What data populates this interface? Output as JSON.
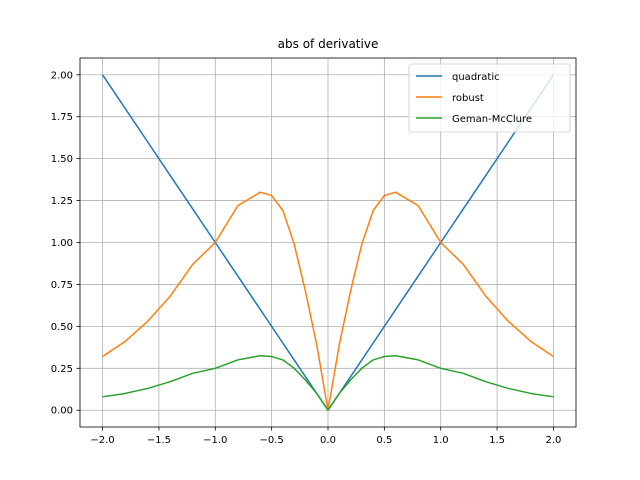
{
  "chart_data": {
    "type": "line",
    "title": "abs of derivative",
    "xlabel": "",
    "ylabel": "",
    "xlim": [
      -2.2,
      2.2
    ],
    "ylim": [
      -0.1,
      2.1
    ],
    "xticks": [
      -2.0,
      -1.5,
      -1.0,
      -0.5,
      0.0,
      0.5,
      1.0,
      1.5,
      2.0
    ],
    "xtick_labels": [
      "−2.0",
      "−1.5",
      "−1.0",
      "−0.5",
      "0.0",
      "0.5",
      "1.0",
      "1.5",
      "2.0"
    ],
    "yticks": [
      0.0,
      0.25,
      0.5,
      0.75,
      1.0,
      1.25,
      1.5,
      1.75,
      2.0
    ],
    "ytick_labels": [
      "0.00",
      "0.25",
      "0.50",
      "0.75",
      "1.00",
      "1.25",
      "1.50",
      "1.75",
      "2.00"
    ],
    "grid": true,
    "legend_position": "top-right",
    "x": [
      -2.0,
      -1.8,
      -1.6,
      -1.4,
      -1.2,
      -1.0,
      -0.8,
      -0.6,
      -0.5,
      -0.4,
      -0.3,
      -0.2,
      -0.1,
      0.0,
      0.1,
      0.2,
      0.3,
      0.4,
      0.5,
      0.6,
      0.8,
      1.0,
      1.2,
      1.4,
      1.6,
      1.8,
      2.0
    ],
    "series": [
      {
        "name": "quadratic",
        "color": "#1f77b4",
        "values": [
          2.0,
          1.8,
          1.6,
          1.4,
          1.2,
          1.0,
          0.8,
          0.6,
          0.5,
          0.4,
          0.3,
          0.2,
          0.1,
          0.0,
          0.1,
          0.2,
          0.3,
          0.4,
          0.5,
          0.6,
          0.8,
          1.0,
          1.2,
          1.4,
          1.6,
          1.8,
          2.0
        ]
      },
      {
        "name": "robust",
        "color": "#ff7f0e",
        "values": [
          0.32,
          0.41,
          0.53,
          0.68,
          0.87,
          1.0,
          1.22,
          1.3,
          1.28,
          1.19,
          0.99,
          0.71,
          0.39,
          0.0,
          0.39,
          0.71,
          0.99,
          1.19,
          1.28,
          1.3,
          1.22,
          1.0,
          0.87,
          0.68,
          0.53,
          0.41,
          0.32
        ]
      },
      {
        "name": "Geman-McClure",
        "color": "#2ca02c",
        "values": [
          0.08,
          0.1,
          0.13,
          0.17,
          0.22,
          0.25,
          0.3,
          0.325,
          0.32,
          0.3,
          0.25,
          0.18,
          0.1,
          0.0,
          0.1,
          0.18,
          0.25,
          0.3,
          0.32,
          0.325,
          0.3,
          0.25,
          0.22,
          0.17,
          0.13,
          0.1,
          0.08
        ]
      }
    ]
  }
}
